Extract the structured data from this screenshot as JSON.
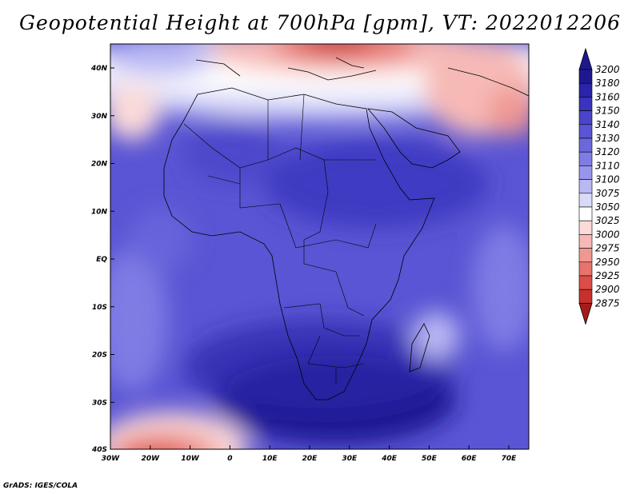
{
  "title": "Geopotential Height at 700hPa [gpm], VT: 2022012206",
  "credit": "GrADS: IGES/COLA",
  "axes": {
    "lat_ticks": [
      "40N",
      "30N",
      "20N",
      "10N",
      "EQ",
      "10S",
      "20S",
      "30S",
      "40S"
    ],
    "lon_ticks": [
      "30W",
      "20W",
      "10W",
      "0",
      "10E",
      "20E",
      "30E",
      "40E",
      "50E",
      "60E",
      "70E"
    ]
  },
  "colorbar": {
    "levels": [
      "3200",
      "3180",
      "3160",
      "3150",
      "3140",
      "3130",
      "3120",
      "3110",
      "3100",
      "3075",
      "3050",
      "3025",
      "3000",
      "2975",
      "2950",
      "2925",
      "2900",
      "2875"
    ],
    "colors": [
      "#1e1890",
      "#2b23a8",
      "#3a33bd",
      "#4a44c9",
      "#5a55d4",
      "#6c68dc",
      "#7f7ce4",
      "#9896ec",
      "#b9b8f3",
      "#dadaf8",
      "#ffffff",
      "#fbdad8",
      "#f6b9b5",
      "#ef9892",
      "#e7736c",
      "#dc4d47",
      "#c8302c",
      "#a51d1b"
    ]
  }
}
